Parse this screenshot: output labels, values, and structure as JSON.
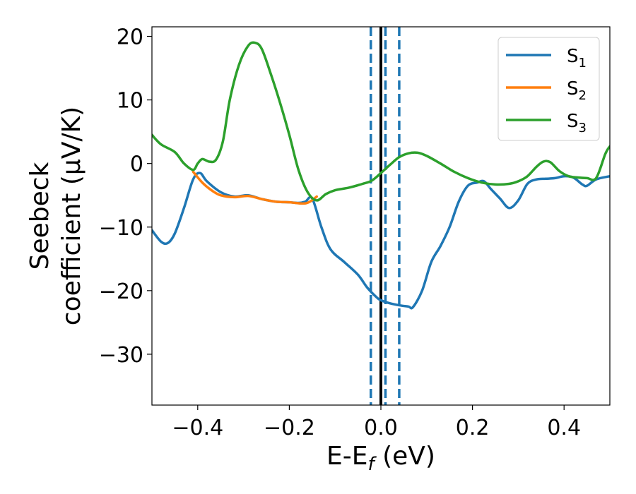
{
  "chart_data": {
    "type": "line",
    "xlabel": "E-E",
    "xlabel_sub": "f",
    "xlabel_unit": " (eV)",
    "ylabel_line1": "Seebeck",
    "ylabel_line2": "coefficient  (μV/K)",
    "xlim": [
      -0.5,
      0.5
    ],
    "ylim": [
      -38,
      21.5
    ],
    "xticks": [
      -0.4,
      -0.2,
      0.0,
      0.2,
      0.4
    ],
    "xtick_labels": [
      "−0.4",
      "−0.2",
      "0.0",
      "0.2",
      "0.4"
    ],
    "yticks": [
      -30,
      -20,
      -10,
      0,
      10,
      20
    ],
    "ytick_labels": [
      "−30",
      "−20",
      "−10",
      "0",
      "10",
      "20"
    ],
    "grid": false,
    "legend_position": "top-right",
    "series": [
      {
        "name": "S",
        "sub": "1",
        "color": "#1f77b4",
        "x": [
          -0.5,
          -0.48,
          -0.465,
          -0.45,
          -0.43,
          -0.41,
          -0.395,
          -0.38,
          -0.35,
          -0.32,
          -0.29,
          -0.26,
          -0.23,
          -0.2,
          -0.18,
          -0.165,
          -0.15,
          -0.13,
          -0.11,
          -0.08,
          -0.05,
          -0.03,
          -0.01,
          0.0,
          0.02,
          0.04,
          0.06,
          0.07,
          0.09,
          0.11,
          0.13,
          0.15,
          0.17,
          0.19,
          0.21,
          0.225,
          0.24,
          0.26,
          0.28,
          0.3,
          0.32,
          0.34,
          0.36,
          0.38,
          0.4,
          0.42,
          0.44,
          0.45,
          0.47,
          0.5
        ],
        "y": [
          -10.5,
          -12.3,
          -12.5,
          -11,
          -7,
          -2.5,
          -1.5,
          -2.8,
          -4.5,
          -5.2,
          -5.0,
          -5.6,
          -6.0,
          -6.1,
          -6.2,
          -6.0,
          -5.5,
          -10,
          -13.5,
          -15.5,
          -17.5,
          -19.5,
          -21,
          -21.5,
          -22,
          -22.3,
          -22.5,
          -22.6,
          -20,
          -15.5,
          -13,
          -10,
          -6,
          -3.5,
          -3.0,
          -2.8,
          -4,
          -5.5,
          -7.0,
          -5.8,
          -3.2,
          -2.5,
          -2.4,
          -2.3,
          -2.0,
          -2.2,
          -3.3,
          -3.5,
          -2.5,
          -2.0
        ]
      },
      {
        "name": "S",
        "sub": "2",
        "color": "#ff7f0e",
        "x": [
          -0.41,
          -0.39,
          -0.37,
          -0.35,
          -0.32,
          -0.29,
          -0.26,
          -0.23,
          -0.2,
          -0.17,
          -0.155,
          -0.14
        ],
        "y": [
          -1.3,
          -3.0,
          -4.2,
          -5.0,
          -5.3,
          -5.1,
          -5.6,
          -6.0,
          -6.1,
          -6.3,
          -6.0,
          -5.2
        ]
      },
      {
        "name": "S",
        "sub": "3",
        "color": "#2ca02c",
        "x": [
          -0.5,
          -0.48,
          -0.45,
          -0.43,
          -0.41,
          -0.4,
          -0.39,
          -0.375,
          -0.36,
          -0.345,
          -0.33,
          -0.31,
          -0.29,
          -0.275,
          -0.26,
          -0.24,
          -0.22,
          -0.2,
          -0.18,
          -0.16,
          -0.14,
          -0.12,
          -0.1,
          -0.07,
          -0.04,
          -0.02,
          0.0,
          0.02,
          0.04,
          0.06,
          0.08,
          0.1,
          0.13,
          0.16,
          0.19,
          0.22,
          0.25,
          0.28,
          0.3,
          0.32,
          0.34,
          0.355,
          0.37,
          0.39,
          0.41,
          0.43,
          0.45,
          0.47,
          0.49,
          0.5
        ],
        "y": [
          4.5,
          3.0,
          1.8,
          0.0,
          -1.0,
          0.0,
          0.7,
          0.3,
          0.6,
          3.5,
          10.0,
          15.5,
          18.5,
          19.0,
          18.0,
          14.0,
          9.5,
          4.5,
          -1.0,
          -4.5,
          -5.8,
          -4.8,
          -4.2,
          -3.8,
          -3.2,
          -2.7,
          -1.5,
          -0.2,
          1.0,
          1.6,
          1.7,
          1.2,
          0.0,
          -1.3,
          -2.3,
          -3.0,
          -3.3,
          -3.2,
          -2.8,
          -2.0,
          -0.5,
          0.3,
          0.2,
          -1.2,
          -2.0,
          -2.2,
          -2.3,
          -2.3,
          1.5,
          2.7
        ]
      }
    ],
    "vlines": [
      {
        "x": 0.0,
        "color": "#000000",
        "style": "solid"
      },
      {
        "x": -0.022,
        "color": "#1f77b4",
        "style": "dashed"
      },
      {
        "x": 0.01,
        "color": "#1f77b4",
        "style": "dashed"
      },
      {
        "x": 0.04,
        "color": "#1f77b4",
        "style": "dashed"
      }
    ]
  }
}
